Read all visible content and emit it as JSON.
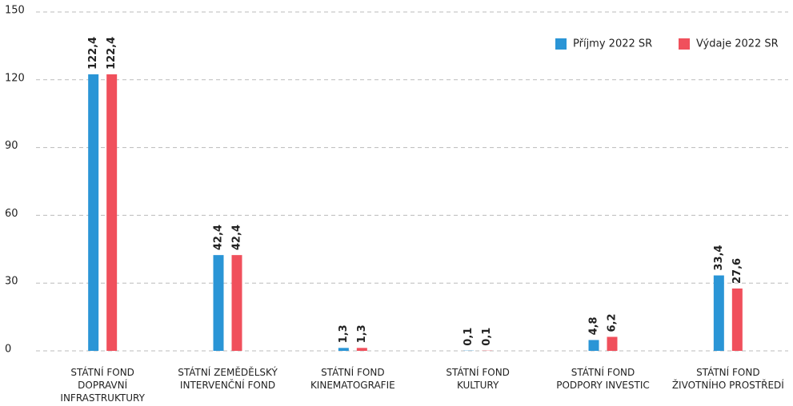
{
  "chart_data": {
    "type": "bar",
    "categories": [
      "STÁTNÍ FOND\nDOPRAVNÍ\nINFRASTRUKTURY",
      "STÁTNÍ ZEMĚDĚLSKÝ\nINTERVENČNÍ FOND",
      "STÁTNÍ FOND\nKINEMATOGRAFIE",
      "STÁTNÍ FOND\nKULTURY",
      "STÁTNÍ FOND\nPODPORY INVESTIC",
      "STÁTNÍ FOND\nŽIVOTNÍHO PROSTŘEDÍ"
    ],
    "series": [
      {
        "name": "Příjmy 2022 SR",
        "color": "#2a95d6",
        "values": [
          122.4,
          42.4,
          1.3,
          0.1,
          4.8,
          33.4
        ],
        "value_labels": [
          "122,4",
          "42,4",
          "1,3",
          "0,1",
          "4,8",
          "33,4"
        ]
      },
      {
        "name": "Výdaje 2022 SR",
        "color": "#f0505c",
        "values": [
          122.4,
          42.4,
          1.3,
          0.1,
          6.2,
          27.6
        ],
        "value_labels": [
          "122,4",
          "42,4",
          "1,3",
          "0,1",
          "6,2",
          "27,6"
        ]
      }
    ],
    "ylim": [
      0,
      150
    ],
    "yticks": [
      0,
      30,
      60,
      90,
      120,
      150
    ],
    "grid": true,
    "legend": "top-right"
  }
}
